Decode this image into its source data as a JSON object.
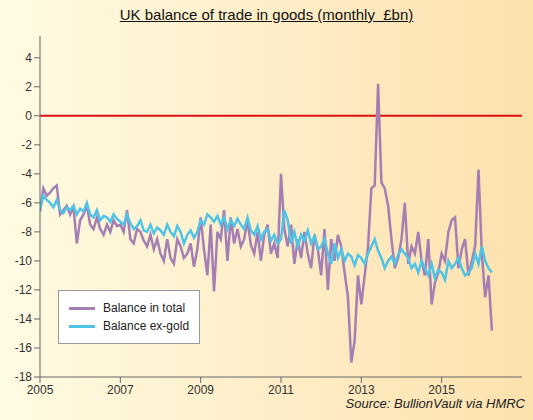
{
  "chart_data": {
    "type": "line",
    "title": "UK balance of trade in goods (monthly  £bn)",
    "annotation": "Source: BullionVault via HMRC",
    "x": [
      2005,
      2005.083,
      2005.167,
      2005.25,
      2005.333,
      2005.417,
      2005.5,
      2005.583,
      2005.667,
      2005.75,
      2005.833,
      2005.917,
      2006,
      2006.083,
      2006.167,
      2006.25,
      2006.333,
      2006.417,
      2006.5,
      2006.583,
      2006.667,
      2006.75,
      2006.833,
      2006.917,
      2007,
      2007.083,
      2007.167,
      2007.25,
      2007.333,
      2007.417,
      2007.5,
      2007.583,
      2007.667,
      2007.75,
      2007.833,
      2007.917,
      2008,
      2008.083,
      2008.167,
      2008.25,
      2008.333,
      2008.417,
      2008.5,
      2008.583,
      2008.667,
      2008.75,
      2008.833,
      2008.917,
      2009,
      2009.083,
      2009.167,
      2009.25,
      2009.333,
      2009.417,
      2009.5,
      2009.583,
      2009.667,
      2009.75,
      2009.833,
      2009.917,
      2010,
      2010.083,
      2010.167,
      2010.25,
      2010.333,
      2010.417,
      2010.5,
      2010.583,
      2010.667,
      2010.75,
      2010.833,
      2010.917,
      2011,
      2011.083,
      2011.167,
      2011.25,
      2011.333,
      2011.417,
      2011.5,
      2011.583,
      2011.667,
      2011.75,
      2011.833,
      2011.917,
      2012,
      2012.083,
      2012.167,
      2012.25,
      2012.333,
      2012.417,
      2012.5,
      2012.583,
      2012.667,
      2012.75,
      2012.833,
      2012.917,
      2013,
      2013.083,
      2013.167,
      2013.25,
      2013.333,
      2013.417,
      2013.5,
      2013.583,
      2013.667,
      2013.75,
      2013.833,
      2013.917,
      2014,
      2014.083,
      2014.167,
      2014.25,
      2014.333,
      2014.417,
      2014.5,
      2014.583,
      2014.667,
      2014.75,
      2014.833,
      2014.917,
      2015,
      2015.083,
      2015.167,
      2015.25,
      2015.333,
      2015.417,
      2015.5,
      2015.583,
      2015.667,
      2015.75,
      2015.833,
      2015.917,
      2016,
      2016.083,
      2016.167,
      2016.25
    ],
    "series": [
      {
        "name": "Balance in total",
        "color": "#a57fb3",
        "values": [
          -6.6,
          -5.0,
          -5.5,
          -5.3,
          -5.0,
          -4.8,
          -6.8,
          -6.5,
          -6.2,
          -6.8,
          -6.3,
          -8.8,
          -7.2,
          -6.8,
          -6.2,
          -7.5,
          -7.8,
          -7.0,
          -7.8,
          -8.2,
          -7.5,
          -8.0,
          -7.2,
          -7.6,
          -7.5,
          -8.0,
          -6.5,
          -8.5,
          -8.8,
          -7.8,
          -8.0,
          -8.6,
          -9.0,
          -8.2,
          -9.2,
          -8.5,
          -9.5,
          -10.0,
          -8.5,
          -9.8,
          -10.2,
          -8.5,
          -9.0,
          -9.8,
          -9.5,
          -8.8,
          -10.4,
          -9.2,
          -7.0,
          -9.2,
          -11.0,
          -7.5,
          -12.1,
          -8.0,
          -8.5,
          -6.5,
          -10.0,
          -7.0,
          -8.8,
          -7.8,
          -9.0,
          -8.5,
          -7.2,
          -8.9,
          -9.5,
          -8.0,
          -10.0,
          -8.2,
          -7.5,
          -9.5,
          -8.8,
          -9.8,
          -4.0,
          -7.8,
          -9.0,
          -7.5,
          -10.2,
          -8.5,
          -9.8,
          -8.0,
          -9.5,
          -10.5,
          -8.2,
          -9.2,
          -11.0,
          -7.8,
          -12.0,
          -8.5,
          -10.0,
          -8.2,
          -9.0,
          -10.8,
          -12.5,
          -17.0,
          -15.5,
          -11.0,
          -13.0,
          -11.0,
          -9.0,
          -5.0,
          -4.8,
          2.2,
          -4.6,
          -5.0,
          -6.2,
          -8.5,
          -10.5,
          -9.8,
          -8.5,
          -6.0,
          -10.2,
          -9.0,
          -9.5,
          -8.0,
          -10.0,
          -11.0,
          -8.5,
          -13.0,
          -11.5,
          -10.8,
          -9.5,
          -10.0,
          -8.0,
          -7.2,
          -7.0,
          -10.5,
          -9.2,
          -8.5,
          -11.0,
          -10.0,
          -9.0,
          -3.7,
          -9.5,
          -12.5,
          -11.0,
          -14.8
        ]
      },
      {
        "name": "Balance ex-gold",
        "color": "#4fc4e6",
        "values": [
          -6.5,
          -5.5,
          -5.8,
          -6.0,
          -6.3,
          -5.8,
          -6.5,
          -6.7,
          -6.3,
          -6.5,
          -6.2,
          -6.8,
          -6.4,
          -6.6,
          -6.0,
          -6.8,
          -7.0,
          -6.5,
          -7.2,
          -6.9,
          -7.0,
          -7.3,
          -6.8,
          -7.1,
          -7.3,
          -7.5,
          -6.8,
          -7.4,
          -7.8,
          -7.6,
          -7.2,
          -7.9,
          -8.0,
          -7.5,
          -8.1,
          -7.7,
          -7.9,
          -8.2,
          -7.5,
          -8.0,
          -8.3,
          -7.6,
          -8.0,
          -8.8,
          -8.2,
          -7.9,
          -8.4,
          -8.0,
          -7.2,
          -7.5,
          -6.8,
          -7.0,
          -7.3,
          -6.9,
          -7.5,
          -7.0,
          -7.8,
          -7.2,
          -7.6,
          -7.1,
          -7.5,
          -7.8,
          -7.0,
          -7.9,
          -8.2,
          -7.6,
          -8.5,
          -8.0,
          -7.8,
          -8.6,
          -8.2,
          -8.8,
          -8.5,
          -6.5,
          -7.2,
          -8.8,
          -8.0,
          -9.0,
          -8.2,
          -8.6,
          -7.9,
          -8.8,
          -8.3,
          -9.2,
          -9.0,
          -8.5,
          -9.5,
          -10.2,
          -8.8,
          -9.8,
          -9.2,
          -10.0,
          -9.5,
          -9.7,
          -10.3,
          -9.6,
          -9.8,
          -10.2,
          -9.5,
          -9.0,
          -8.5,
          -9.3,
          -9.8,
          -10.5,
          -10.0,
          -9.7,
          -10.2,
          -9.6,
          -9.2,
          -9.5,
          -9.8,
          -10.5,
          -10.2,
          -10.8,
          -10.0,
          -10.5,
          -11.0,
          -10.2,
          -11.2,
          -10.6,
          -10.8,
          -11.3,
          -10.0,
          -10.5,
          -10.2,
          -9.8,
          -10.5,
          -11.0,
          -10.8,
          -10.5,
          -9.5,
          -10.2,
          -9.0,
          -10.0,
          -10.5,
          -10.8
        ]
      }
    ],
    "xlim": [
      2005,
      2017
    ],
    "xticks": [
      2005,
      2007,
      2009,
      2011,
      2013,
      2015
    ],
    "ylim": [
      -18,
      5.5
    ],
    "yticks": [
      -18,
      -16,
      -14,
      -12,
      -10,
      -8,
      -6,
      -4,
      -2,
      0,
      2,
      4
    ],
    "grid": false,
    "legend": "bottom-left"
  }
}
